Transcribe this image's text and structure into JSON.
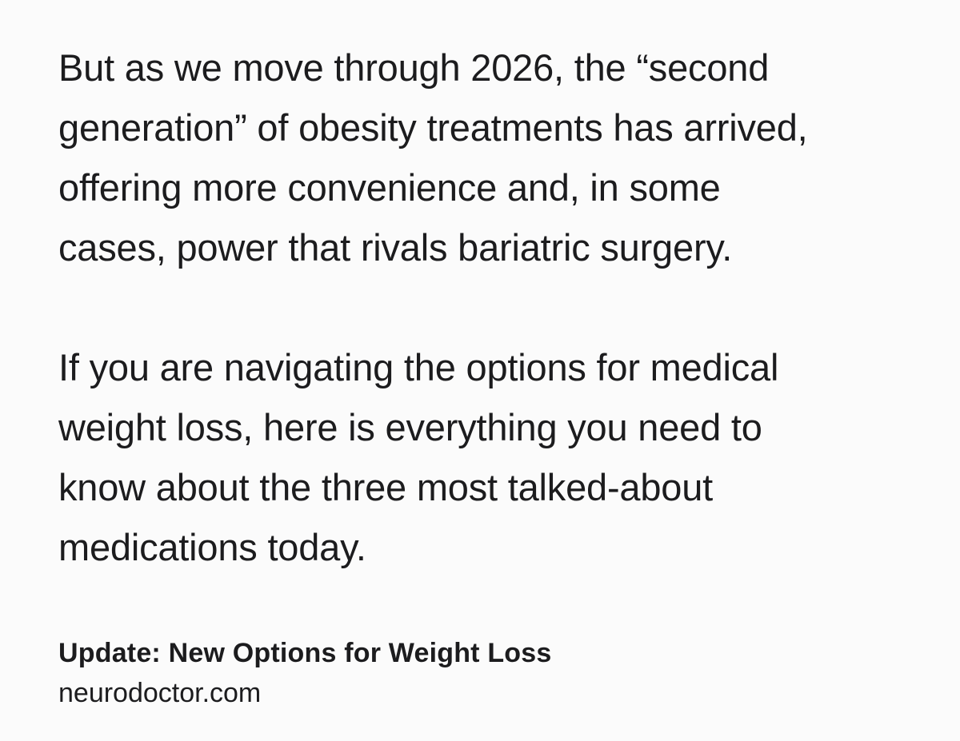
{
  "article": {
    "paragraphs": [
      "But as we move through 2026, the “second\ngeneration” of obesity treatments has arrived,\noffering more convenience and, in some\ncases, power that rivals bariatric surgery.",
      "If you are navigating the options for medical\nweight loss, here is everything you need to\nknow about the three most talked-about\nmedications today."
    ]
  },
  "link_preview": {
    "title": "Update: New Options for Weight Loss",
    "domain": "neurodoctor.com"
  }
}
